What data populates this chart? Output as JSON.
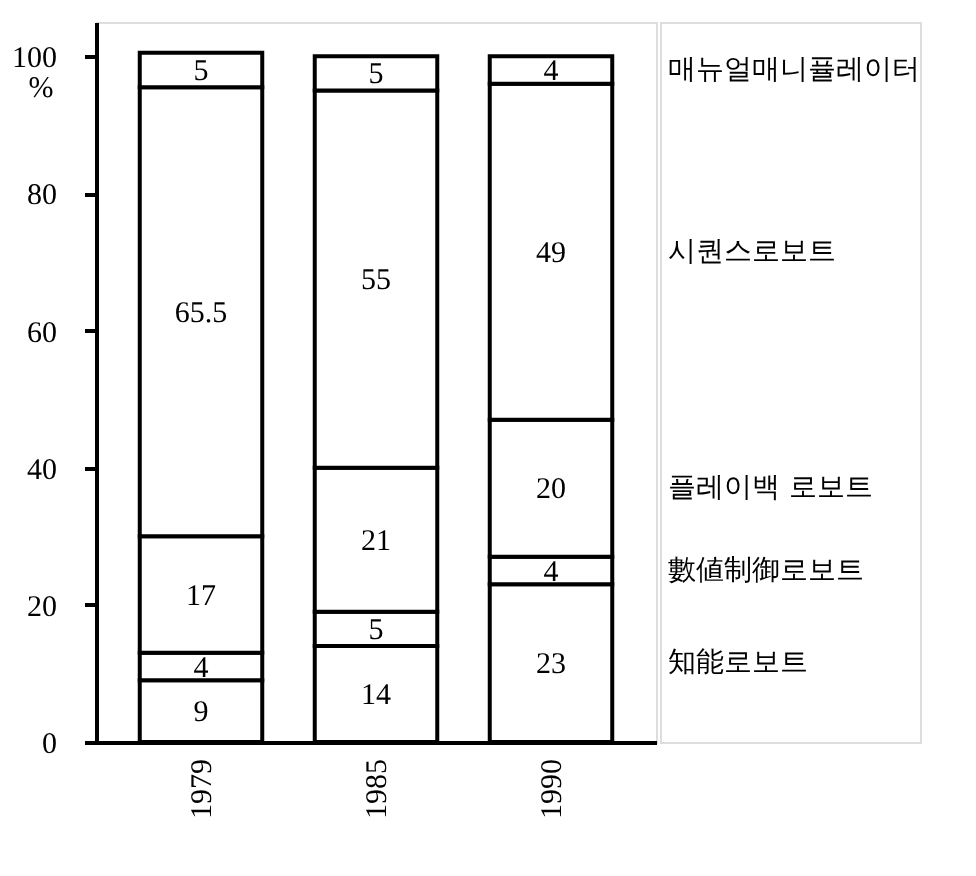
{
  "chart_data": {
    "type": "bar",
    "stacked": true,
    "ylabel": "%",
    "categories": [
      "1979",
      "1985",
      "1990"
    ],
    "series": [
      {
        "name": "知能로보트",
        "color": "#ffffff",
        "values": [
          9,
          14,
          23
        ]
      },
      {
        "name": "數値制御로보트",
        "color": "#ffffff",
        "values": [
          4,
          5,
          4
        ]
      },
      {
        "name": "플레이백 로보트",
        "color": "#ffffff",
        "values": [
          17,
          21,
          20
        ]
      },
      {
        "name": "시퀀스로보트",
        "color": "#ffffff",
        "values": [
          65.5,
          55,
          49
        ]
      },
      {
        "name": "매뉴얼매니퓰레이터",
        "color": "#ffffff",
        "values": [
          5,
          5,
          4
        ]
      }
    ],
    "data_labels": true,
    "ylim": [
      0,
      105
    ],
    "yticks": [
      0,
      20,
      40,
      60,
      80,
      100
    ],
    "grid": false
  }
}
